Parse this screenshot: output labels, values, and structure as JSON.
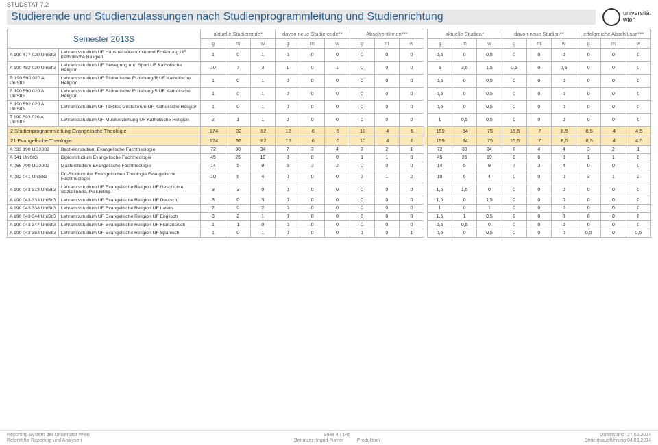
{
  "doc_id": "STUDSTAT 7.2",
  "title": "Studierende und Studienzulassungen nach Studienprogrammleitung und Studienrichtung",
  "semester": "Semester 2013S",
  "logo": {
    "line1": "universität",
    "line2": "wien"
  },
  "group_headers": [
    "aktuelle Studierende*",
    "davon neue Studierende**",
    "AbsolventInnen***",
    "aktuelle Studien*",
    "davon neue Studien**",
    "erfolgreiche Abschlüsse***"
  ],
  "sub_headers": [
    "g",
    "m",
    "w",
    "g",
    "m",
    "w",
    "g",
    "m",
    "w",
    "g",
    "m",
    "w",
    "g",
    "m",
    "w",
    "g",
    "m",
    "w"
  ],
  "rows": [
    {
      "code": "A 190 477 020 UniStG",
      "desc": "Lehramtsstudium UF Haushaltsökonomie und Ernährung UF Katholische Religion",
      "v": [
        "1",
        "0",
        "1",
        "0",
        "0",
        "0",
        "0",
        "0",
        "0",
        "0,5",
        "0",
        "0,5",
        "0",
        "0",
        "0",
        "0",
        "0",
        "0"
      ]
    },
    {
      "code": "A 190 482 020 UniStG",
      "desc": "Lehramtsstudium UF Bewegung und Sport UF Katholische Religion",
      "v": [
        "10",
        "7",
        "3",
        "1",
        "0",
        "1",
        "0",
        "0",
        "0",
        "5",
        "3,5",
        "1,5",
        "0,5",
        "0",
        "0,5",
        "0",
        "0",
        "0"
      ]
    },
    {
      "code": "R 190 590 020 A UniStG",
      "desc": "Lehramtsstudium UF Bildnerische Erziehung/R UF Katholische Religion",
      "v": [
        "1",
        "0",
        "1",
        "0",
        "0",
        "0",
        "0",
        "0",
        "0",
        "0,5",
        "0",
        "0,5",
        "0",
        "0",
        "0",
        "0",
        "0",
        "0"
      ]
    },
    {
      "code": "S 190 590 020 A UniStG",
      "desc": "Lehramtsstudium UF Bildnerische Erziehung/S UF Katholische Religion",
      "v": [
        "1",
        "0",
        "1",
        "0",
        "0",
        "0",
        "0",
        "0",
        "0",
        "0,5",
        "0",
        "0,5",
        "0",
        "0",
        "0",
        "0",
        "0",
        "0"
      ]
    },
    {
      "code": "S 190 592 020 A UniStG",
      "desc": "Lehramtsstudium UF Textiles Gestalten/S UF Katholische Religion",
      "v": [
        "1",
        "0",
        "1",
        "0",
        "0",
        "0",
        "0",
        "0",
        "0",
        "0,5",
        "0",
        "0,5",
        "0",
        "0",
        "0",
        "0",
        "0",
        "0"
      ]
    },
    {
      "code": "T 190 593 020 A UniStG",
      "desc": "Lehramtsstudium UF Musikerziehung UF Katholische Religion",
      "v": [
        "2",
        "1",
        "1",
        "0",
        "0",
        "0",
        "0",
        "0",
        "0",
        "1",
        "0,5",
        "0,5",
        "0",
        "0",
        "0",
        "0",
        "0",
        "0"
      ]
    },
    {
      "section": true,
      "code": "2 Studienprogrammleitung Evangelische Theologie",
      "desc": "",
      "v": [
        "174",
        "92",
        "82",
        "12",
        "6",
        "6",
        "10",
        "4",
        "6",
        "159",
        "84",
        "75",
        "15,5",
        "7",
        "8,5",
        "8,5",
        "4",
        "4,5"
      ]
    },
    {
      "section": true,
      "code": "21 Evangelische Theologie",
      "desc": "",
      "v": [
        "174",
        "92",
        "82",
        "12",
        "6",
        "6",
        "10",
        "4",
        "6",
        "159",
        "84",
        "75",
        "15,5",
        "7",
        "8,5",
        "8,5",
        "4",
        "4,5"
      ]
    },
    {
      "code": "A 033 190 UG2002",
      "desc": "Bachelorstudium Evangelische Fachtheologie",
      "v": [
        "72",
        "38",
        "34",
        "7",
        "3",
        "4",
        "3",
        "2",
        "1",
        "72",
        "38",
        "34",
        "8",
        "4",
        "4",
        "3",
        "2",
        "1"
      ]
    },
    {
      "code": "A 041 UniStG",
      "desc": "Diplomstudium Evangelische Fachtheologie",
      "v": [
        "45",
        "26",
        "19",
        "0",
        "0",
        "0",
        "1",
        "1",
        "0",
        "45",
        "26",
        "19",
        "0",
        "0",
        "0",
        "1",
        "1",
        "0"
      ]
    },
    {
      "code": "A 066 790 UG2002",
      "desc": "Masterstudium Evangelische Fachtheologie",
      "v": [
        "14",
        "5",
        "9",
        "5",
        "3",
        "2",
        "0",
        "0",
        "0",
        "14",
        "5",
        "9",
        "7",
        "3",
        "4",
        "0",
        "0",
        "0"
      ]
    },
    {
      "code": "A 082 041 UniStG",
      "desc": "Dr.-Studium der Evangelischen Theologie Evangelische Fachtheologie",
      "v": [
        "10",
        "6",
        "4",
        "0",
        "0",
        "0",
        "3",
        "1",
        "2",
        "10",
        "6",
        "4",
        "0",
        "0",
        "0",
        "3",
        "1",
        "2"
      ]
    },
    {
      "code": "A 190 043 313 UniStG",
      "desc": "Lehramtsstudium UF Evangelische Religion UF Geschichte, Sozialkunde, Polit.Bildg.",
      "v": [
        "3",
        "3",
        "0",
        "0",
        "0",
        "0",
        "0",
        "0",
        "0",
        "1,5",
        "1,5",
        "0",
        "0",
        "0",
        "0",
        "0",
        "0",
        "0"
      ]
    },
    {
      "code": "A 190 043 333 UniStG",
      "desc": "Lehramtsstudium UF Evangelische Religion UF Deutsch",
      "v": [
        "3",
        "0",
        "3",
        "0",
        "0",
        "0",
        "0",
        "0",
        "0",
        "1,5",
        "0",
        "1,5",
        "0",
        "0",
        "0",
        "0",
        "0",
        "0"
      ]
    },
    {
      "code": "A 190 043 338 UniStG",
      "desc": "Lehramtsstudium UF Evangelische Religion UF Latein",
      "v": [
        "2",
        "0",
        "2",
        "0",
        "0",
        "0",
        "0",
        "0",
        "0",
        "1",
        "0",
        "1",
        "0",
        "0",
        "0",
        "0",
        "0",
        "0"
      ]
    },
    {
      "code": "A 190 043 344 UniStG",
      "desc": "Lehramtsstudium UF Evangelische Religion UF Englisch",
      "v": [
        "3",
        "2",
        "1",
        "0",
        "0",
        "0",
        "0",
        "0",
        "0",
        "1,5",
        "1",
        "0,5",
        "0",
        "0",
        "0",
        "0",
        "0",
        "0"
      ]
    },
    {
      "code": "A 190 043 347 UniStG",
      "desc": "Lehramtsstudium UF Evangelische Religion UF Französisch",
      "v": [
        "1",
        "1",
        "0",
        "0",
        "0",
        "0",
        "0",
        "0",
        "0",
        "0,5",
        "0,5",
        "0",
        "0",
        "0",
        "0",
        "0",
        "0",
        "0"
      ]
    },
    {
      "code": "A 190 043 353 UniStG",
      "desc": "Lehramtsstudium UF Evangelische Religion UF Spanisch",
      "v": [
        "1",
        "0",
        "1",
        "0",
        "0",
        "0",
        "1",
        "0",
        "1",
        "0,5",
        "0",
        "0,5",
        "0",
        "0",
        "0",
        "0,5",
        "0",
        "0,5"
      ]
    }
  ],
  "footer": {
    "l1": "Reporting System der Universität Wien",
    "l2": "Referat für Reporting und Analysen",
    "m1": "Seite 4 / 145",
    "m2": "Benutzer: Ingrid Purner",
    "m3": "Produktion",
    "r1": "Datenstand: 27.02.2014",
    "r2": "Berichtsausführung:04.03.2014"
  },
  "col_widths": {
    "code": 62,
    "desc": 172,
    "num": 30,
    "spacer": 4
  },
  "colors": {
    "title": "#2b5f8f",
    "title_bg": "#e8e8e8",
    "section_bg": "#fce9b5",
    "border": "#bbbbbb",
    "text": "#333333",
    "muted": "#888888"
  }
}
